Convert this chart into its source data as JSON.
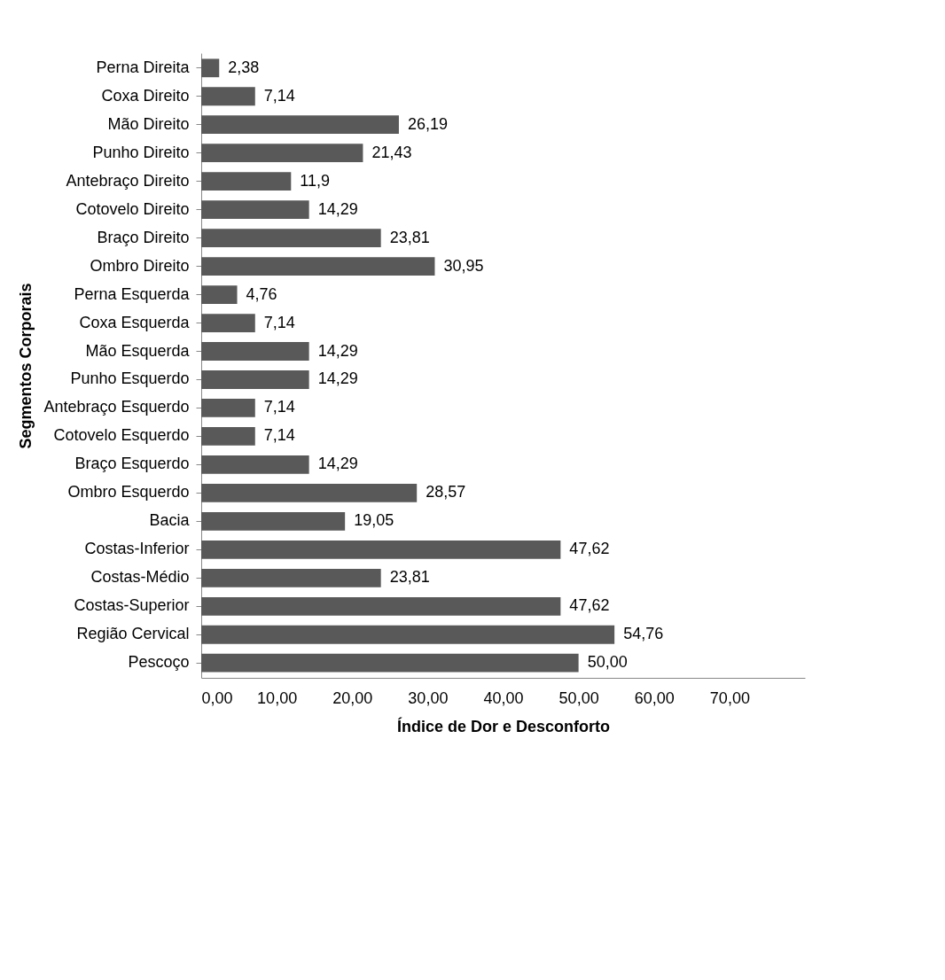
{
  "chart_data": {
    "type": "bar",
    "orientation": "horizontal",
    "xlabel": "Índice de Dor e Desconforto",
    "ylabel": "Segmentos Corporais",
    "categories": [
      "Perna Direita",
      "Coxa Direito",
      "Mão Direito",
      "Punho Direito",
      "Antebraço Direito",
      "Cotovelo Direito",
      "Braço Direito",
      "Ombro Direito",
      "Perna Esquerda",
      "Coxa Esquerda",
      "Mão Esquerda",
      "Punho Esquerdo",
      "Antebraço Esquerdo",
      "Cotovelo Esquerdo",
      "Braço Esquerdo",
      "Ombro Esquerdo",
      "Bacia",
      "Costas-Inferior",
      "Costas-Médio",
      "Costas-Superior",
      "Região Cervical",
      "Pescoço"
    ],
    "values": [
      2.38,
      7.14,
      26.19,
      21.43,
      11.9,
      14.29,
      23.81,
      30.95,
      4.76,
      7.14,
      14.29,
      14.29,
      7.14,
      7.14,
      14.29,
      28.57,
      19.05,
      47.62,
      23.81,
      47.62,
      54.76,
      50.0
    ],
    "value_labels": [
      "2,38",
      "7,14",
      "26,19",
      "21,43",
      "11,9",
      "14,29",
      "23,81",
      "30,95",
      "4,76",
      "7,14",
      "14,29",
      "14,29",
      "7,14",
      "7,14",
      "14,29",
      "28,57",
      "19,05",
      "47,62",
      "23,81",
      "47,62",
      "54,76",
      "50,00"
    ],
    "color": "#595959",
    "xlim": [
      0,
      80
    ],
    "xticks": [
      {
        "value": 0,
        "label": "0,00"
      },
      {
        "value": 10,
        "label": "10,00"
      },
      {
        "value": 20,
        "label": "20,00"
      },
      {
        "value": 30,
        "label": "30,00"
      },
      {
        "value": 40,
        "label": "40,00"
      },
      {
        "value": 50,
        "label": "50,00"
      },
      {
        "value": 60,
        "label": "60,00"
      },
      {
        "value": 70,
        "label": "70,00"
      }
    ],
    "grid": false
  }
}
